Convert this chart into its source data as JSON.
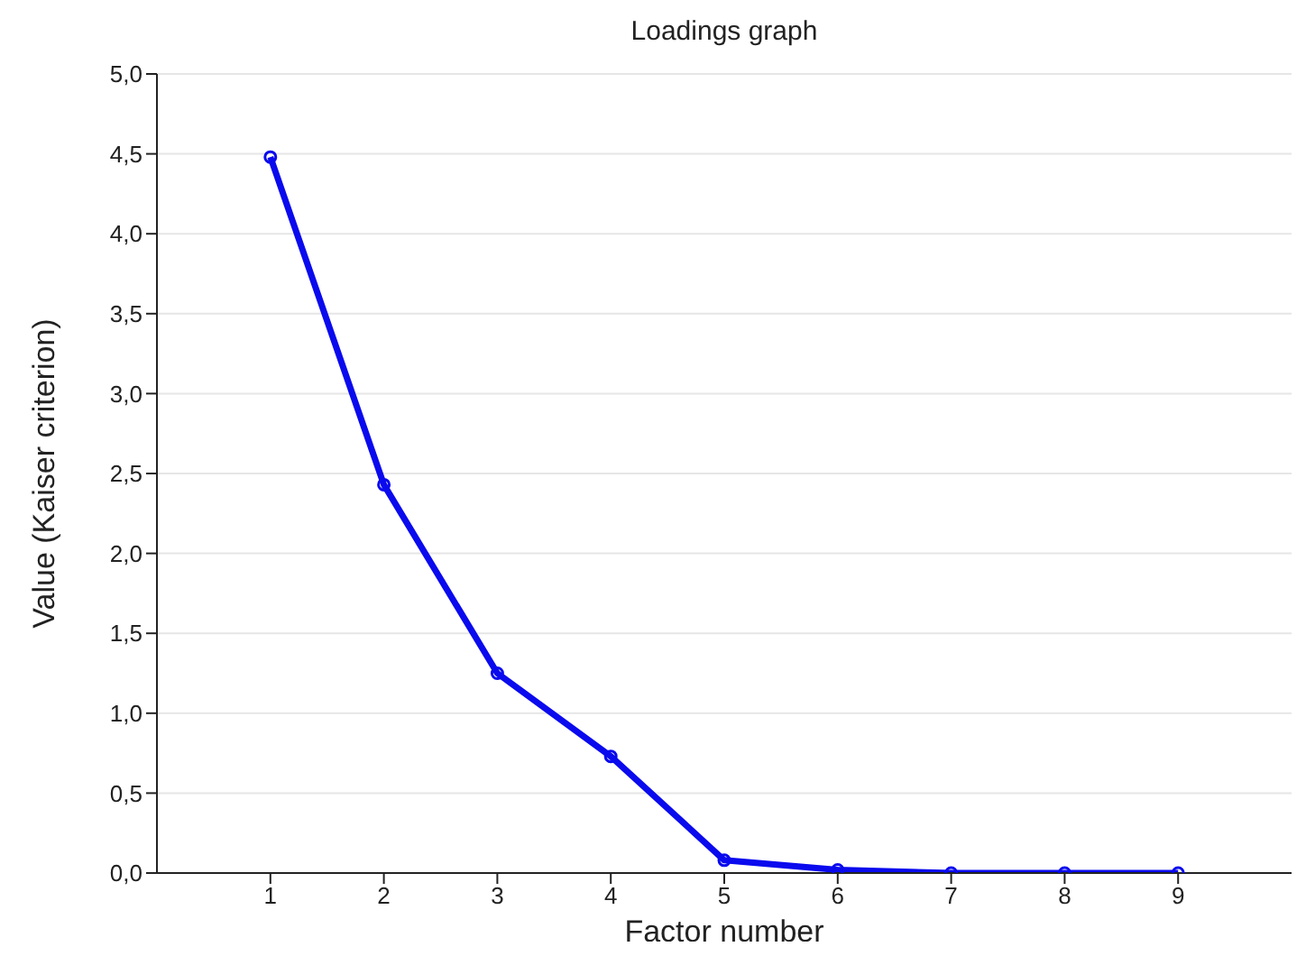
{
  "chart_data": {
    "type": "line",
    "title": "Loadings graph",
    "xlabel": "Factor number",
    "ylabel": "Value (Kaiser criterion)",
    "x": [
      1,
      2,
      3,
      4,
      5,
      6,
      7,
      8,
      9
    ],
    "series": [
      {
        "color": "#0a0aee",
        "values": [
          4.48,
          2.43,
          1.25,
          0.73,
          0.08,
          0.02,
          0,
          0,
          0
        ]
      }
    ],
    "xlim": [
      0,
      10
    ],
    "xticks": [
      1,
      2,
      3,
      4,
      5,
      6,
      7,
      8,
      9
    ],
    "ylim": [
      0,
      5
    ],
    "yticks": [
      {
        "value": 0,
        "label": "0,0"
      },
      {
        "value": 0.5,
        "label": "0,5"
      },
      {
        "value": 1,
        "label": "1,0"
      },
      {
        "value": 1.5,
        "label": "1,5"
      },
      {
        "value": 2,
        "label": "2,0"
      },
      {
        "value": 2.5,
        "label": "2,5"
      },
      {
        "value": 3,
        "label": "3,0"
      },
      {
        "value": 3.5,
        "label": "3,5"
      },
      {
        "value": 4,
        "label": "4,0"
      },
      {
        "value": 4.5,
        "label": "4,5"
      },
      {
        "value": 5,
        "label": "5,0"
      }
    ],
    "grid": "y",
    "marker": "circle",
    "line_style": "solid",
    "legend": false
  }
}
